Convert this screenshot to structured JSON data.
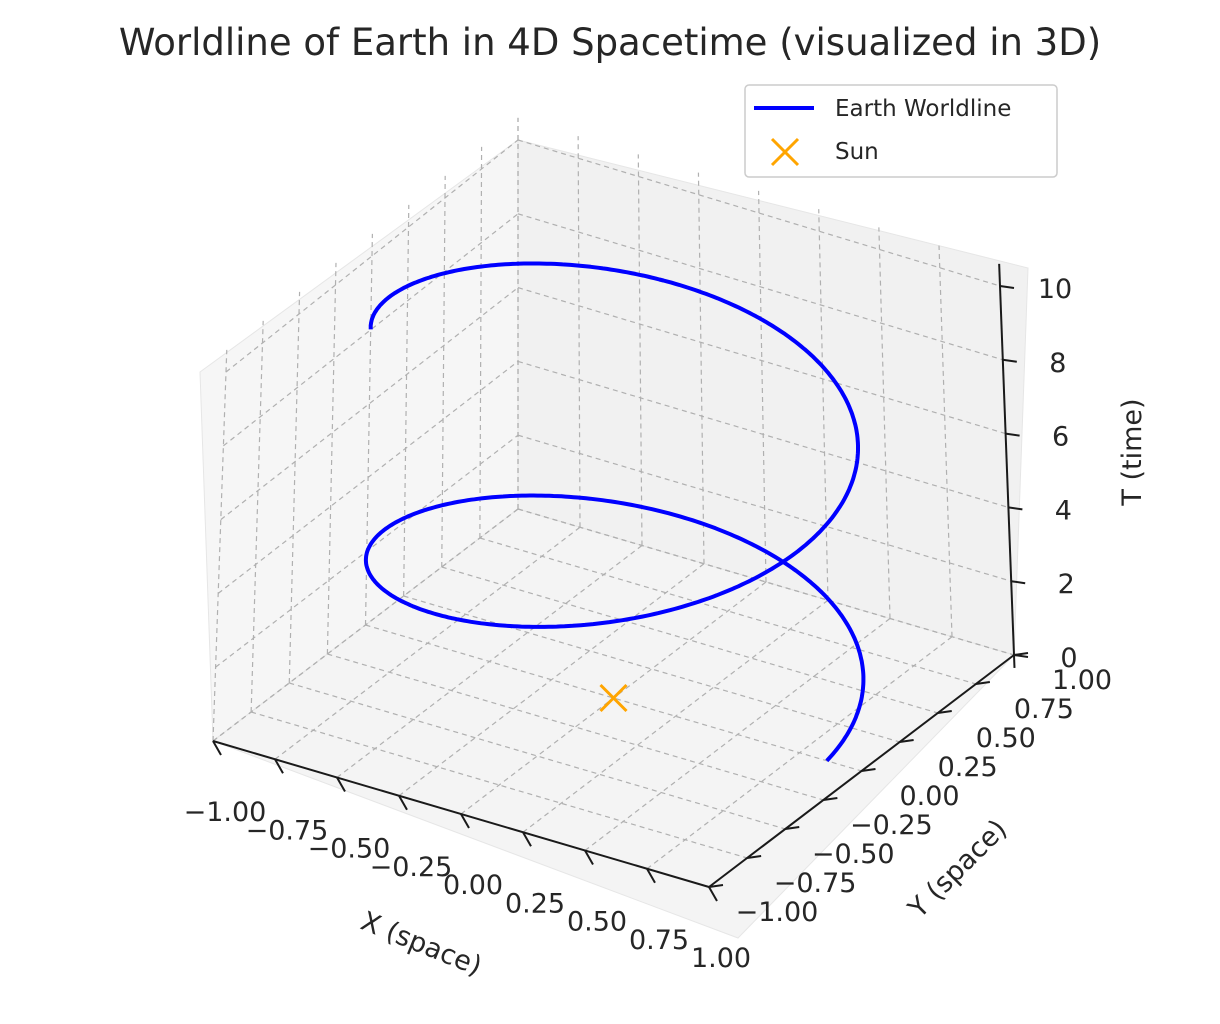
{
  "chart_data": {
    "type": "line3d",
    "title": "Worldline of Earth in 4D Spacetime (visualized in 3D)",
    "xlabel": "X (space)",
    "ylabel": "Y (space)",
    "zlabel": "T (time)",
    "xlim": [
      -1.0,
      1.0
    ],
    "ylim": [
      -1.0,
      1.0
    ],
    "zlim": [
      0,
      10
    ],
    "x_ticks": [
      "−1.00",
      "−0.75",
      "−0.50",
      "−0.25",
      "0.00",
      "0.25",
      "0.50",
      "0.75",
      "1.00"
    ],
    "y_ticks": [
      "−1.00",
      "−0.75",
      "−0.50",
      "−0.25",
      "0.00",
      "0.25",
      "0.50",
      "0.75",
      "1.00"
    ],
    "z_ticks": [
      "0",
      "2",
      "4",
      "6",
      "8",
      "10"
    ],
    "grid": true,
    "legend_position": "top-right",
    "series": [
      {
        "name": "Earth Worldline",
        "kind": "line",
        "color": "#0000ff",
        "x_formula": "cos(t)",
        "y_formula": "sin(t)",
        "t_range": [
          0,
          10
        ],
        "turns": 1.59
      },
      {
        "name": "Sun",
        "kind": "marker",
        "marker": "x",
        "color": "#ffa500",
        "points": [
          [
            0,
            0,
            0
          ]
        ]
      }
    ]
  }
}
